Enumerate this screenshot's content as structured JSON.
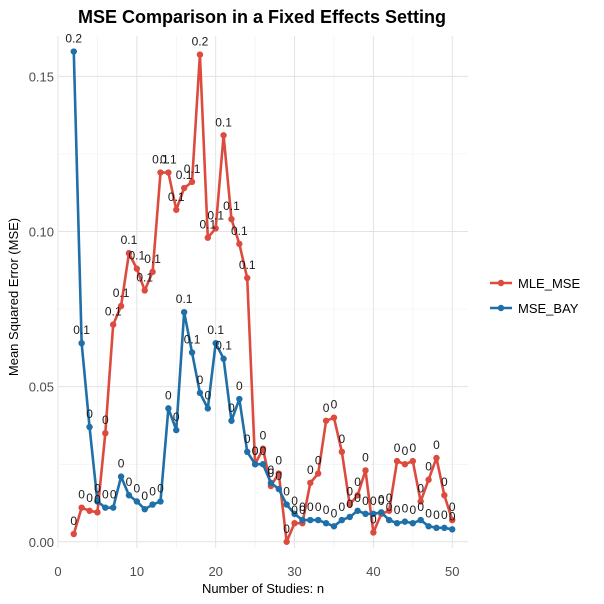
{
  "chart_data": {
    "type": "line",
    "title": "MSE Comparison in a Fixed Effects Setting",
    "xlabel": "Number of Studies: n",
    "ylabel": "Mean Squared Error (MSE)",
    "xlim": [
      0,
      52
    ],
    "ylim": [
      -0.002,
      0.163
    ],
    "x_ticks": [
      0,
      10,
      20,
      30,
      40,
      50
    ],
    "x_tick_labels": [
      "0",
      "10",
      "20",
      "30",
      "40",
      "50"
    ],
    "y_ticks": [
      0.0,
      0.05,
      0.1,
      0.15
    ],
    "y_tick_labels": [
      "0.00",
      "0.05",
      "0.10",
      "0.15"
    ],
    "grid": true,
    "legend_position": "right",
    "x": [
      2,
      3,
      4,
      5,
      6,
      7,
      8,
      9,
      10,
      11,
      12,
      13,
      14,
      15,
      16,
      17,
      18,
      19,
      20,
      21,
      22,
      23,
      24,
      25,
      26,
      27,
      28,
      29,
      30,
      31,
      32,
      33,
      34,
      35,
      36,
      37,
      38,
      39,
      40,
      41,
      42,
      43,
      44,
      45,
      46,
      47,
      48,
      49,
      50
    ],
    "series": [
      {
        "name": "MLE_MSE",
        "color": "#dd4a3e",
        "values": [
          0.0025,
          0.011,
          0.01,
          0.0095,
          0.035,
          0.07,
          0.076,
          0.093,
          0.088,
          0.081,
          0.087,
          0.119,
          0.119,
          0.107,
          0.114,
          0.116,
          0.157,
          0.098,
          0.101,
          0.131,
          0.104,
          0.096,
          0.085,
          0.025,
          0.03,
          0.018,
          0.022,
          0.0,
          0.006,
          0.006,
          0.019,
          0.022,
          0.039,
          0.04,
          0.029,
          0.012,
          0.015,
          0.023,
          0.003,
          0.009,
          0.01,
          0.026,
          0.025,
          0.026,
          0.013,
          0.02,
          0.027,
          0.015,
          0.007
        ],
        "labels": [
          "0",
          "0",
          "0",
          "0",
          "0",
          "0.1",
          "0.1",
          "0.1",
          "0.1",
          "0.1",
          "0.1",
          "0.1",
          "0.1",
          "0.1",
          "0.1",
          "0.1",
          "0.2",
          "0.1",
          "0.1",
          "0.1",
          "0.1",
          "0.1",
          "0.1",
          "0",
          "0",
          "0",
          "0",
          "0",
          "0",
          "0",
          "0",
          "0",
          "0",
          "0",
          "0",
          "0",
          "0",
          "0",
          "0",
          "0",
          "0",
          "0",
          "0",
          "0",
          "0",
          "0",
          "0",
          "0",
          "0"
        ]
      },
      {
        "name": "MSE_BAY",
        "color": "#1f6fa8",
        "values": [
          0.158,
          0.064,
          0.037,
          0.013,
          0.011,
          0.011,
          0.021,
          0.015,
          0.013,
          0.0105,
          0.012,
          0.013,
          0.043,
          0.036,
          0.074,
          0.061,
          0.048,
          0.043,
          0.064,
          0.059,
          0.039,
          0.046,
          0.029,
          0.025,
          0.025,
          0.019,
          0.017,
          0.012,
          0.009,
          0.007,
          0.007,
          0.007,
          0.006,
          0.005,
          0.007,
          0.008,
          0.01,
          0.009,
          0.009,
          0.0095,
          0.007,
          0.006,
          0.0065,
          0.006,
          0.007,
          0.005,
          0.0045,
          0.0045,
          0.004
        ],
        "labels": [
          "0.2",
          "0.1",
          "0",
          "0",
          "0",
          "0",
          "0",
          "0",
          "0",
          "0",
          "0",
          "0",
          "0",
          "0",
          "0.1",
          "0.1",
          "0",
          "0",
          "0.1",
          "0.1",
          "0",
          "0",
          "0",
          "0",
          "0",
          "0",
          "0",
          "0",
          "0",
          "0",
          "0",
          "0",
          "0",
          "0",
          "0",
          "0",
          "0",
          "0",
          "0",
          "0",
          "0",
          "0",
          "0",
          "0",
          "0",
          "0",
          "0",
          "0",
          "0"
        ]
      }
    ]
  }
}
